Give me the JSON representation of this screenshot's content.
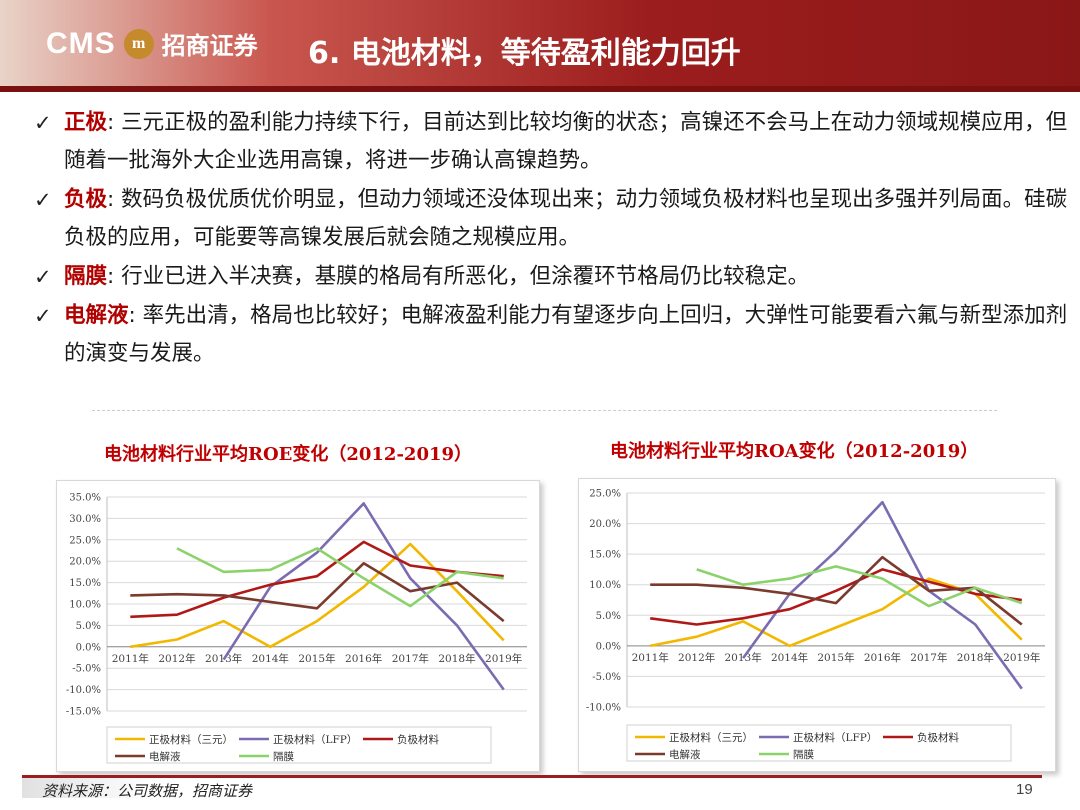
{
  "header": {
    "logo_text": "CMS",
    "logo_mark": "m",
    "logo_cn": "招商证券",
    "title": "6. 电池材料，等待盈利能力回升"
  },
  "bullets": [
    {
      "key": "正极",
      "sep": ": ",
      "text": "三元正极的盈利能力持续下行，目前达到比较均衡的状态；高镍还不会马上在动力领域规模应用，但随着一批海外大企业选用高镍，将进一步确认高镍趋势。"
    },
    {
      "key": "负极",
      "sep": ": ",
      "text": "数码负极优质优价明显，但动力领域还没体现出来；动力领域负极材料也呈现出多强并列局面。硅碳负极的应用，可能要等高镍发展后就会随之规模应用。"
    },
    {
      "key": "隔膜",
      "sep": ": ",
      "text": "行业已进入半决赛，基膜的格局有所恶化，但涂覆环节格局仍比较稳定。"
    },
    {
      "key": "电解液",
      "sep": ": ",
      "text": "率先出清，格局也比较好；电解液盈利能力有望逐步向上回归，大弹性可能要看六氟与新型添加剂的演变与发展。"
    }
  ],
  "colors": {
    "accent": "#9c1d1d",
    "key_text": "#b00000",
    "ncm": "#f2b800",
    "lfp": "#7b6bb0",
    "anode": "#b01818",
    "electrolyte": "#7a3b2e",
    "separator": "#8cd26a"
  },
  "chart_data": [
    {
      "type": "line",
      "title": "电池材料行业平均ROE变化（2012-2019）",
      "categories": [
        "2011年",
        "2012年",
        "2013年",
        "2014年",
        "2015年",
        "2016年",
        "2017年",
        "2018年",
        "2019年"
      ],
      "ylim": [
        -15,
        35
      ],
      "yticks": [
        "35.0%",
        "30.0%",
        "25.0%",
        "20.0%",
        "15.0%",
        "10.0%",
        "5.0%",
        "0.0%",
        "-5.0%",
        "-10.0%",
        "-15.0%"
      ],
      "grid": true,
      "legend_position": "bottom",
      "series": [
        {
          "name": "正极材料（三元）",
          "color": "#f2b800",
          "values": [
            0,
            1.7,
            6,
            0,
            6,
            14,
            24,
            13,
            1.5
          ]
        },
        {
          "name": "正极材料（LFP）",
          "color": "#7b6bb0",
          "values": [
            null,
            null,
            -3,
            14,
            22,
            33.5,
            16,
            5,
            -10
          ]
        },
        {
          "name": "负极材料",
          "color": "#b01818",
          "values": [
            7,
            7.5,
            11.5,
            14.5,
            16.5,
            24.5,
            19,
            17.5,
            16.5
          ]
        },
        {
          "name": "电解液",
          "color": "#7a3b2e",
          "values": [
            12,
            12.3,
            12,
            10.5,
            9,
            19.5,
            13,
            15,
            6
          ]
        },
        {
          "name": "隔膜",
          "color": "#8cd26a",
          "values": [
            null,
            23,
            17.5,
            18,
            23,
            16,
            9.5,
            17.5,
            16
          ]
        }
      ]
    },
    {
      "type": "line",
      "title": "电池材料行业平均ROA变化（2012-2019）",
      "categories": [
        "2011年",
        "2012年",
        "2013年",
        "2014年",
        "2015年",
        "2016年",
        "2017年",
        "2018年",
        "2019年"
      ],
      "ylim": [
        -10,
        25
      ],
      "yticks": [
        "25.0%",
        "20.0%",
        "15.0%",
        "10.0%",
        "5.0%",
        "0.0%",
        "-5.0%",
        "-10.0%"
      ],
      "grid": true,
      "legend_position": "bottom",
      "series": [
        {
          "name": "正极材料（三元）",
          "color": "#f2b800",
          "values": [
            0,
            1.5,
            4,
            0,
            3,
            6,
            11,
            8.5,
            1
          ]
        },
        {
          "name": "正极材料（LFP）",
          "color": "#7b6bb0",
          "values": [
            null,
            null,
            -2,
            8.5,
            15.5,
            23.5,
            9,
            3.5,
            -7
          ]
        },
        {
          "name": "负极材料",
          "color": "#b01818",
          "values": [
            4.5,
            3.5,
            4.5,
            6,
            9,
            12.5,
            10.5,
            8.5,
            7.5
          ]
        },
        {
          "name": "电解液",
          "color": "#7a3b2e",
          "values": [
            10,
            10,
            9.5,
            8.5,
            7,
            14.5,
            9,
            9.5,
            3.5
          ]
        },
        {
          "name": "隔膜",
          "color": "#8cd26a",
          "values": [
            null,
            12.5,
            10,
            11,
            13,
            11,
            6.5,
            9.5,
            7
          ]
        }
      ]
    }
  ],
  "footer": {
    "source": "资料来源：公司数据，招商证券",
    "page": "19"
  }
}
